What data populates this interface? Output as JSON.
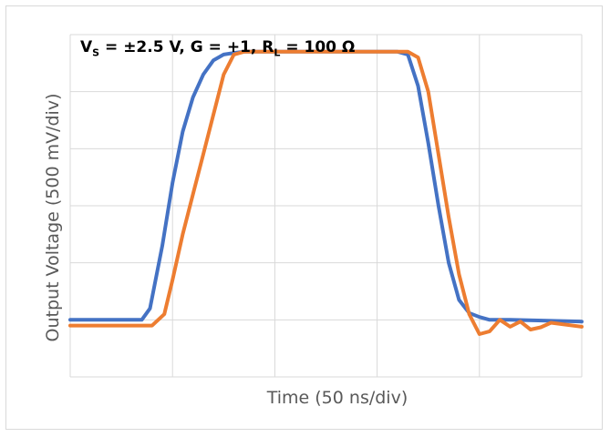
{
  "chart_data": {
    "type": "line",
    "title": "",
    "annotation": {
      "prefix": "V",
      "prefix_sub": "S",
      "middle": " = ±2.5 V, G = +1, R",
      "middle_sub": "L",
      "suffix": " = 100 Ω"
    },
    "xlabel": "Time (50 ns/div)",
    "ylabel": "Output Voltage (500 mV/div)",
    "x_divisions": 5,
    "y_divisions": 6,
    "xlim": [
      0,
      5
    ],
    "ylim": [
      0,
      6
    ],
    "grid": true,
    "legend": "none",
    "series": [
      {
        "color": "#4472c4",
        "x": [
          0,
          0.7,
          0.78,
          0.9,
          1.0,
          1.1,
          1.2,
          1.3,
          1.4,
          1.5,
          1.6,
          1.7,
          1.8,
          3.2,
          3.3,
          3.4,
          3.5,
          3.6,
          3.7,
          3.8,
          3.9,
          4.0,
          4.1,
          4.3,
          5.0
        ],
        "y": [
          1.0,
          1.0,
          1.2,
          2.3,
          3.4,
          4.3,
          4.9,
          5.3,
          5.55,
          5.65,
          5.68,
          5.7,
          5.7,
          5.7,
          5.65,
          5.1,
          4.1,
          3.0,
          2.0,
          1.35,
          1.12,
          1.05,
          1.0,
          1.0,
          0.97
        ]
      },
      {
        "color": "#ed7d31",
        "x": [
          0,
          0.8,
          0.92,
          1.0,
          1.1,
          1.2,
          1.3,
          1.4,
          1.5,
          1.6,
          1.7,
          1.8,
          3.3,
          3.4,
          3.5,
          3.6,
          3.7,
          3.8,
          3.9,
          4.0,
          4.1,
          4.2,
          4.3,
          4.4,
          4.5,
          4.6,
          4.7,
          5.0
        ],
        "y": [
          0.9,
          0.9,
          1.1,
          1.7,
          2.5,
          3.2,
          3.9,
          4.6,
          5.3,
          5.65,
          5.7,
          5.7,
          5.7,
          5.6,
          5.0,
          3.9,
          2.8,
          1.8,
          1.1,
          0.75,
          0.8,
          1.0,
          0.88,
          0.97,
          0.83,
          0.87,
          0.95,
          0.88
        ]
      }
    ]
  }
}
